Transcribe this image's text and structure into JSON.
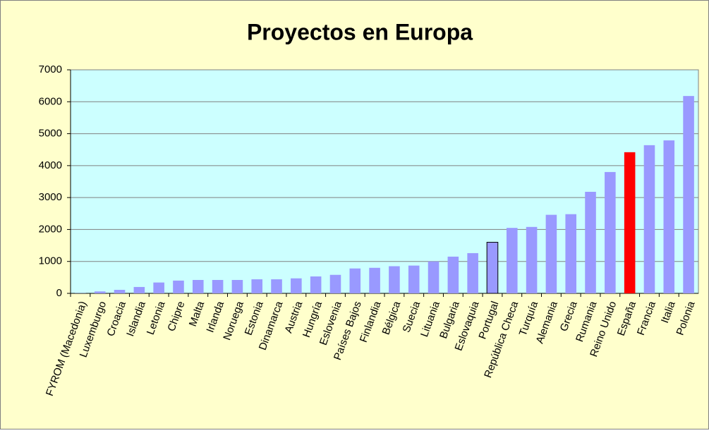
{
  "chart_data": {
    "type": "bar",
    "title": "Proyectos en Europa",
    "categories": [
      "FYROM (Macedonia)",
      "Luxemburgo",
      "Croacia",
      "Islandia",
      "Letonia",
      "Chipre",
      "Malta",
      "Irlanda",
      "Noruega",
      "Estonia",
      "Dinamarca",
      "Austria",
      "Hungría",
      "Eslovenia",
      "Países Bajos",
      "Finlandia",
      "Bélgica",
      "Suecia",
      "Lituania",
      "Bulgaria",
      "Eslovaquia",
      "Portugal",
      "República Checa",
      "Turquía",
      "Alemania",
      "Grecia",
      "Rumania",
      "Reino Unido",
      "España",
      "Francia",
      "Italia",
      "Polonia"
    ],
    "values": [
      5,
      60,
      110,
      200,
      340,
      400,
      420,
      420,
      420,
      440,
      440,
      470,
      530,
      580,
      780,
      800,
      850,
      870,
      1000,
      1150,
      1260,
      1600,
      2050,
      2080,
      2460,
      2480,
      3180,
      3800,
      4420,
      4640,
      4790,
      6180
    ],
    "colors": [
      "#9999ff",
      "#9999ff",
      "#9999ff",
      "#9999ff",
      "#9999ff",
      "#9999ff",
      "#9999ff",
      "#9999ff",
      "#9999ff",
      "#9999ff",
      "#9999ff",
      "#9999ff",
      "#9999ff",
      "#9999ff",
      "#9999ff",
      "#9999ff",
      "#9999ff",
      "#9999ff",
      "#9999ff",
      "#9999ff",
      "#9999ff",
      "#9999ff",
      "#9999ff",
      "#9999ff",
      "#9999ff",
      "#9999ff",
      "#9999ff",
      "#9999ff",
      "#ff0000",
      "#9999ff",
      "#9999ff",
      "#9999ff"
    ],
    "edgecolors": [
      "none",
      "none",
      "none",
      "none",
      "none",
      "none",
      "none",
      "none",
      "none",
      "none",
      "none",
      "none",
      "none",
      "none",
      "none",
      "none",
      "none",
      "none",
      "none",
      "none",
      "none",
      "#000000",
      "none",
      "none",
      "none",
      "none",
      "none",
      "none",
      "none",
      "none",
      "none",
      "none"
    ],
    "ylim": [
      0,
      7000
    ],
    "yticks": [
      0,
      1000,
      2000,
      3000,
      4000,
      5000,
      6000,
      7000
    ],
    "grid": true
  }
}
